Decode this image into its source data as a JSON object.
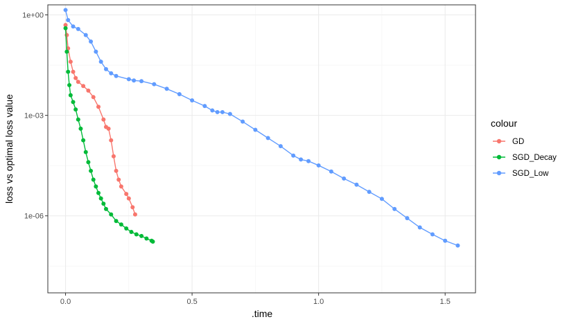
{
  "chart_data": {
    "type": "scatter",
    "xlabel": ".time",
    "ylabel": "loss vs optimal loss value",
    "y_scale": "log10",
    "xlim": [
      -0.07,
      1.62
    ],
    "ylim_log10": [
      -8.3,
      0.3
    ],
    "x_ticks": [
      {
        "value": 0.0,
        "label": "0.0"
      },
      {
        "value": 0.5,
        "label": "0.5"
      },
      {
        "value": 1.0,
        "label": "1.0"
      },
      {
        "value": 1.5,
        "label": "1.5"
      }
    ],
    "y_ticks": [
      {
        "value": 1,
        "label": "1e+00"
      },
      {
        "value": 0.001,
        "label": "1e-03"
      },
      {
        "value": 1e-06,
        "label": "1e-06"
      }
    ],
    "grid": true,
    "legend": {
      "title": "colour",
      "position": "right"
    },
    "series": [
      {
        "name": "GD",
        "color": "#F8766D",
        "points": [
          [
            0.0,
            0.5
          ],
          [
            0.005,
            0.25
          ],
          [
            0.01,
            0.1
          ],
          [
            0.02,
            0.04
          ],
          [
            0.03,
            0.02
          ],
          [
            0.04,
            0.013
          ],
          [
            0.05,
            0.01
          ],
          [
            0.07,
            0.0075
          ],
          [
            0.09,
            0.0055
          ],
          [
            0.11,
            0.0035
          ],
          [
            0.13,
            0.0018
          ],
          [
            0.15,
            0.00075
          ],
          [
            0.16,
            0.00045
          ],
          [
            0.17,
            0.0004
          ],
          [
            0.18,
            0.00018
          ],
          [
            0.19,
            6e-05
          ],
          [
            0.2,
            2.2e-05
          ],
          [
            0.21,
            1.2e-05
          ],
          [
            0.22,
            7.5e-06
          ],
          [
            0.24,
            4.5e-06
          ],
          [
            0.25,
            3.3e-06
          ],
          [
            0.265,
            1.8e-06
          ],
          [
            0.275,
            1.1e-06
          ]
        ]
      },
      {
        "name": "SGD_Decay",
        "color": "#00BA38",
        "points": [
          [
            0.0,
            0.4
          ],
          [
            0.005,
            0.08
          ],
          [
            0.01,
            0.02
          ],
          [
            0.015,
            0.008
          ],
          [
            0.02,
            0.004
          ],
          [
            0.03,
            0.0025
          ],
          [
            0.04,
            0.0015
          ],
          [
            0.05,
            0.00075
          ],
          [
            0.06,
            0.0004
          ],
          [
            0.07,
            0.00018
          ],
          [
            0.08,
            8e-05
          ],
          [
            0.09,
            4e-05
          ],
          [
            0.1,
            2.2e-05
          ],
          [
            0.11,
            1.2e-05
          ],
          [
            0.12,
            7.5e-06
          ],
          [
            0.13,
            4.8e-06
          ],
          [
            0.14,
            3.3e-06
          ],
          [
            0.15,
            2.3e-06
          ],
          [
            0.16,
            1.6e-06
          ],
          [
            0.18,
            1.1e-06
          ],
          [
            0.2,
            7e-07
          ],
          [
            0.22,
            5.5e-07
          ],
          [
            0.24,
            4.2e-07
          ],
          [
            0.26,
            3.3e-07
          ],
          [
            0.28,
            2.8e-07
          ],
          [
            0.3,
            2.5e-07
          ],
          [
            0.32,
            2.1e-07
          ],
          [
            0.34,
            1.8e-07
          ],
          [
            0.345,
            1.7e-07
          ]
        ]
      },
      {
        "name": "SGD_Low",
        "color": "#619CFF",
        "points": [
          [
            0.0,
            1.4
          ],
          [
            0.01,
            0.7
          ],
          [
            0.03,
            0.45
          ],
          [
            0.05,
            0.38
          ],
          [
            0.08,
            0.25
          ],
          [
            0.1,
            0.16
          ],
          [
            0.12,
            0.08
          ],
          [
            0.14,
            0.04
          ],
          [
            0.16,
            0.024
          ],
          [
            0.18,
            0.018
          ],
          [
            0.2,
            0.015
          ],
          [
            0.25,
            0.012
          ],
          [
            0.27,
            0.011
          ],
          [
            0.3,
            0.0105
          ],
          [
            0.35,
            0.0085
          ],
          [
            0.4,
            0.0062
          ],
          [
            0.45,
            0.0043
          ],
          [
            0.5,
            0.0028
          ],
          [
            0.55,
            0.0019
          ],
          [
            0.58,
            0.0014
          ],
          [
            0.6,
            0.00125
          ],
          [
            0.62,
            0.00125
          ],
          [
            0.65,
            0.0011
          ],
          [
            0.7,
            0.00065
          ],
          [
            0.75,
            0.00037
          ],
          [
            0.8,
            0.00021
          ],
          [
            0.85,
            0.00012
          ],
          [
            0.9,
            6.3e-05
          ],
          [
            0.93,
            4.8e-05
          ],
          [
            0.96,
            4.3e-05
          ],
          [
            1.0,
            3.2e-05
          ],
          [
            1.05,
            2.1e-05
          ],
          [
            1.1,
            1.3e-05
          ],
          [
            1.15,
            8.5e-06
          ],
          [
            1.2,
            5.2e-06
          ],
          [
            1.25,
            3.2e-06
          ],
          [
            1.3,
            1.6e-06
          ],
          [
            1.35,
            8.5e-07
          ],
          [
            1.4,
            4.5e-07
          ],
          [
            1.45,
            2.8e-07
          ],
          [
            1.5,
            1.8e-07
          ],
          [
            1.55,
            1.3e-07
          ]
        ]
      }
    ]
  }
}
